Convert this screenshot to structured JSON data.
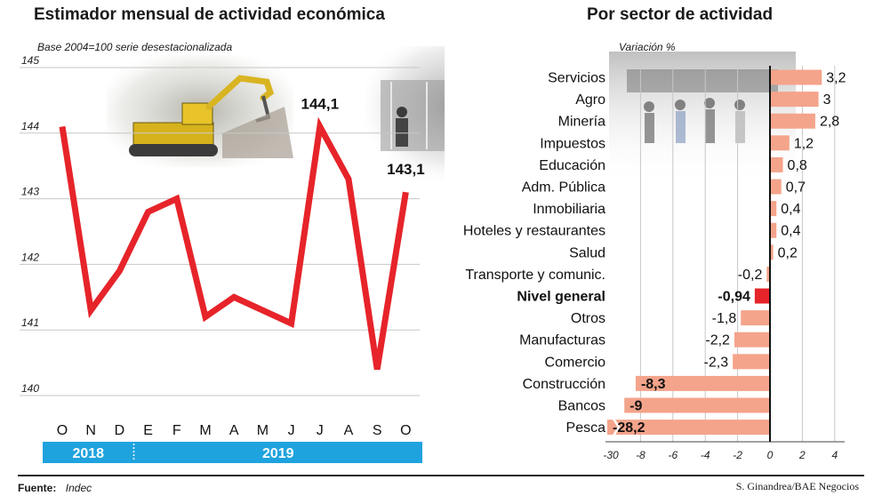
{
  "colors": {
    "line": "#e6242a",
    "bar": "#f4a48b",
    "bar_highlight": "#e6242a",
    "year_band": "#1fa3de",
    "grid": "#c7c7c7"
  },
  "footer": {
    "source_label": "Fuente:",
    "source_value": "Indec",
    "credit": "S. Ginandrea/BAE Negocios"
  },
  "chart_data": [
    {
      "type": "line",
      "title": "Estimador mensual de actividad económica",
      "subtitle": "Base 2004=100 serie desestacionalizada",
      "categories": [
        "O",
        "N",
        "D",
        "E",
        "F",
        "M",
        "A",
        "M",
        "J",
        "J",
        "A",
        "S",
        "O"
      ],
      "values": [
        144.1,
        141.3,
        141.9,
        142.8,
        143.0,
        141.2,
        141.5,
        141.3,
        141.1,
        144.1,
        143.3,
        140.4,
        143.1
      ],
      "ylim": [
        140,
        145
      ],
      "yticks": [
        "140",
        "141",
        "142",
        "143",
        "144",
        "145"
      ],
      "grid": true,
      "annotations": [
        {
          "index": 9,
          "text": "144,1"
        },
        {
          "index": 12,
          "text": "143,1"
        }
      ],
      "year_bands": [
        {
          "label": "2018",
          "from_index": 0,
          "to_index": 2
        },
        {
          "label": "2019",
          "from_index": 3,
          "to_index": 12
        }
      ],
      "icons": [
        "excavator-photo",
        "storefront-photo"
      ]
    },
    {
      "type": "bar",
      "orientation": "horizontal",
      "title": "Por sector de actividad",
      "subtitle": "Variación %",
      "categories": [
        "Servicios",
        "Agro",
        "Minería",
        "Impuestos",
        "Educación",
        "Adm. Pública",
        "Inmobiliaria",
        "Hoteles y restaurantes",
        "Salud",
        "Transporte y comunic.",
        "Nivel general",
        "Otros",
        "Manufacturas",
        "Comercio",
        "Construcción",
        "Bancos",
        "Pesca"
      ],
      "values": [
        3.2,
        3,
        2.8,
        1.2,
        0.8,
        0.7,
        0.4,
        0.4,
        0.2,
        -0.2,
        -0.94,
        -1.8,
        -2.2,
        -2.3,
        -8.3,
        -9,
        -28.2
      ],
      "value_labels": [
        "3,2",
        "3",
        "2,8",
        "1,2",
        "0,8",
        "0,7",
        "0,4",
        "0,4",
        "0,2",
        "-0,2",
        "-0,94",
        "-1,8",
        "-2,2",
        "-2,3",
        "-8,3",
        "-9",
        "-28,2"
      ],
      "highlight": "Nivel general",
      "xticks": [
        "-30",
        "-8",
        "-6",
        "-4",
        "-2",
        "0",
        "2",
        "4"
      ],
      "xtick_values": [
        -30,
        -8,
        -6,
        -4,
        -2,
        0,
        2,
        4
      ],
      "axis_break": true,
      "grid": true,
      "icons": [
        "bank-queue-photo"
      ]
    }
  ]
}
